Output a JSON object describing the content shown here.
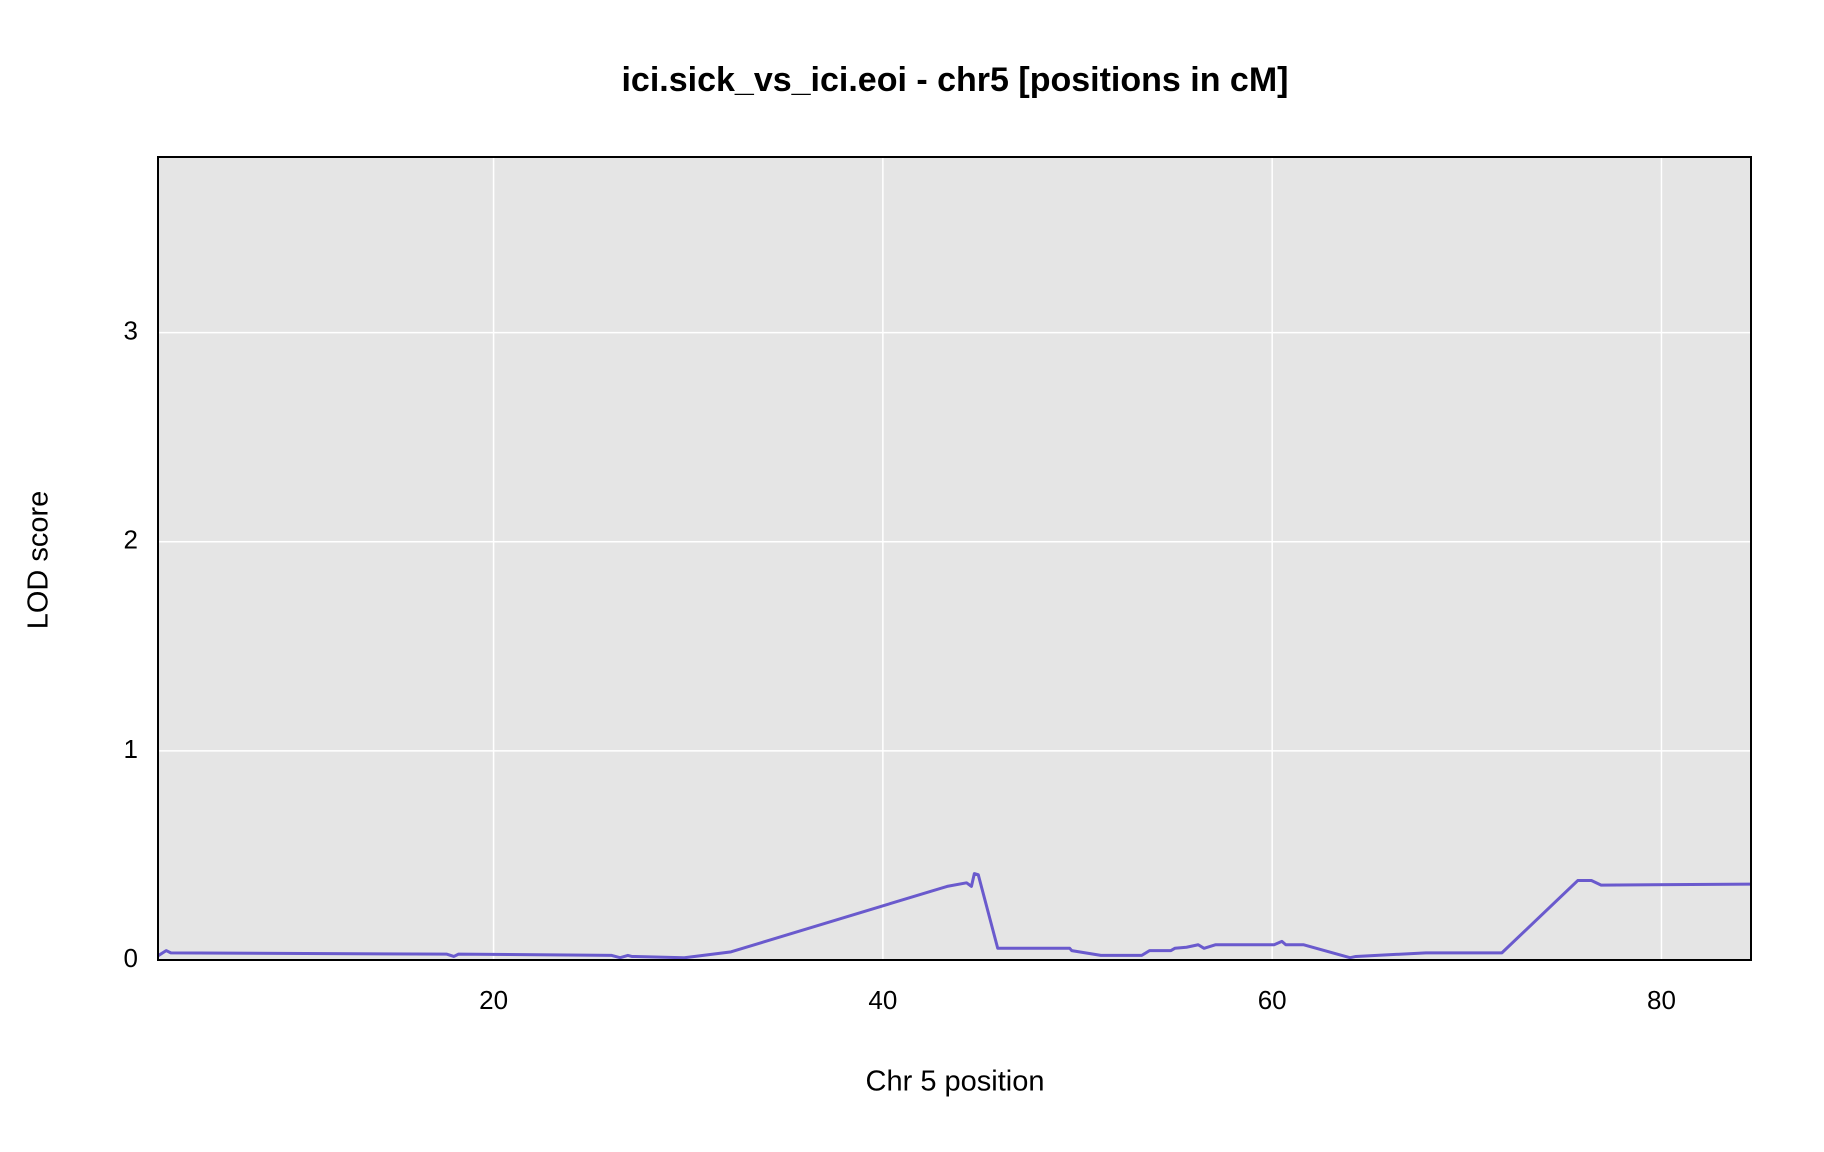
{
  "chart_data": {
    "type": "line",
    "title": "ici.sick_vs_ici.eoi - chr5 [positions in cM]",
    "x_label": "Chr 5 position",
    "y_label": "LOD score",
    "xlim": [
      2.76,
      84.6
    ],
    "ylim": [
      0,
      3.84
    ],
    "xticks": [
      20,
      40,
      60,
      80
    ],
    "yticks": [
      0,
      1,
      2,
      3
    ],
    "grid": true,
    "series": [
      {
        "color": "#6a5acd",
        "x": [
          2.76,
          3.18,
          3.42,
          17.6,
          17.96,
          18.2,
          26.07,
          26.5,
          26.9,
          27.1,
          29.8,
          32.2,
          43.3,
          44.3,
          44.55,
          44.7,
          44.9,
          45.9,
          49.6,
          49.7,
          51.2,
          53.3,
          53.7,
          54.8,
          55.0,
          55.6,
          56.2,
          56.5,
          57.1,
          60.1,
          60.5,
          60.7,
          61.6,
          64.0,
          64.3,
          67.9,
          71.8,
          75.7,
          76.4,
          76.9,
          84.6
        ],
        "values": [
          0.02,
          0.045,
          0.034,
          0.028,
          0.017,
          0.028,
          0.022,
          0.011,
          0.022,
          0.017,
          0.011,
          0.039,
          0.352,
          0.369,
          0.352,
          0.413,
          0.408,
          0.056,
          0.056,
          0.045,
          0.022,
          0.022,
          0.045,
          0.045,
          0.056,
          0.061,
          0.073,
          0.056,
          0.073,
          0.073,
          0.089,
          0.073,
          0.073,
          0.011,
          0.017,
          0.034,
          0.034,
          0.38,
          0.38,
          0.358,
          0.363
        ]
      }
    ]
  }
}
